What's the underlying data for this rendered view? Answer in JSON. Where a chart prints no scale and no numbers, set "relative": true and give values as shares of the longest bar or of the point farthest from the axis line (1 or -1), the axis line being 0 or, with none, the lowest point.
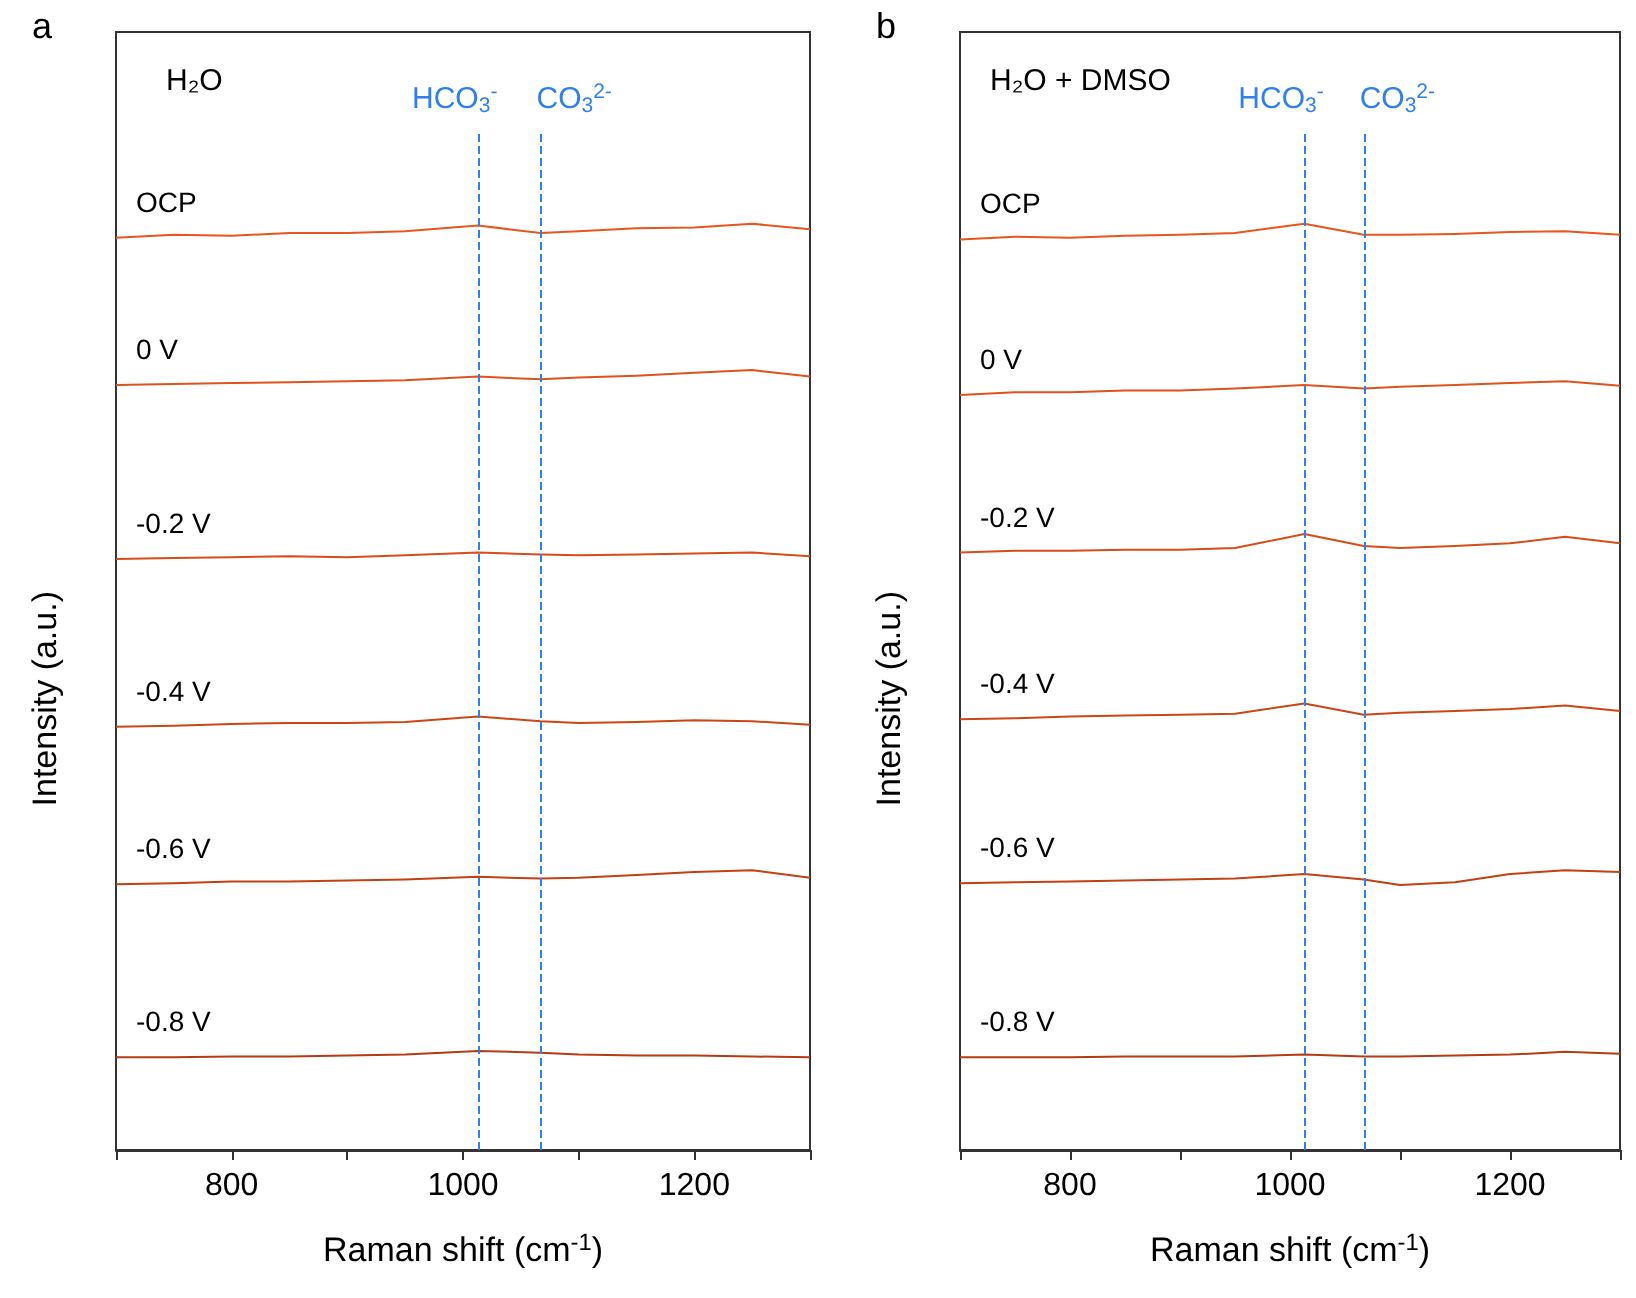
{
  "chart_data": [
    {
      "type": "line",
      "relative": true,
      "xlabel": "Raman shift (cm$^{-1}$)",
      "ylabel": "Intensity (a.u.)",
      "annotations": [
        "a",
        "H₂O"
      ],
      "x": [
        700,
        750,
        800,
        850,
        900,
        950,
        1013,
        1067,
        1100,
        1150,
        1200,
        1250,
        1300
      ],
      "xlim": [
        700,
        1300
      ],
      "xticks": [
        {
          "value": 700,
          "label": null
        },
        800,
        {
          "value": 900,
          "label": null
        },
        1000,
        {
          "value": 1100,
          "label": null
        },
        1200,
        {
          "value": 1300,
          "label": null
        }
      ],
      "grid": false,
      "legend": false,
      "marker": "none",
      "line_style": "solid",
      "ref_lines": [
        {
          "axis": "x",
          "value": 1013,
          "label": "HCO$_{3}$$^{-}$",
          "color": "#2f7fef",
          "line_style": "dashed"
        },
        {
          "axis": "x",
          "value": 1067,
          "label": "CO$_{3}$$^{2-}$",
          "color": "#2f7fef",
          "line_style": "dashed"
        }
      ],
      "series": [
        {
          "name": "OCP",
          "color": "#e8561e",
          "values": [
            0.985,
            0.988,
            0.987,
            0.99,
            0.99,
            0.992,
            0.998,
            0.99,
            0.992,
            0.995,
            0.996,
            1.0,
            0.994
          ]
        },
        {
          "name": "0 V",
          "color": "#e0521b",
          "values": [
            0.826,
            0.827,
            0.828,
            0.829,
            0.83,
            0.831,
            0.835,
            0.832,
            0.834,
            0.836,
            0.839,
            0.842,
            0.835
          ]
        },
        {
          "name": "-0.2 V",
          "color": "#d84c18",
          "values": [
            0.638,
            0.639,
            0.64,
            0.641,
            0.64,
            0.642,
            0.645,
            0.643,
            0.642,
            0.643,
            0.644,
            0.645,
            0.641
          ]
        },
        {
          "name": "-0.4 V",
          "color": "#cc4615",
          "values": [
            0.457,
            0.458,
            0.46,
            0.461,
            0.461,
            0.462,
            0.468,
            0.463,
            0.461,
            0.462,
            0.464,
            0.463,
            0.459
          ]
        },
        {
          "name": "-0.6 V",
          "color": "#c24013",
          "values": [
            0.287,
            0.288,
            0.29,
            0.29,
            0.291,
            0.292,
            0.295,
            0.293,
            0.294,
            0.297,
            0.3,
            0.302,
            0.294
          ]
        },
        {
          "name": "-0.8 V",
          "color": "#b83a12",
          "values": [
            0.1,
            0.1,
            0.101,
            0.101,
            0.102,
            0.103,
            0.107,
            0.105,
            0.103,
            0.102,
            0.102,
            0.101,
            0.1
          ]
        }
      ]
    },
    {
      "type": "line",
      "relative": true,
      "xlabel": "Raman shift (cm$^{-1}$)",
      "ylabel": "Intensity (a.u.)",
      "annotations": [
        "b",
        "H₂O + DMSO"
      ],
      "x": [
        700,
        750,
        800,
        850,
        900,
        950,
        1013,
        1067,
        1100,
        1150,
        1200,
        1250,
        1300
      ],
      "xlim": [
        700,
        1300
      ],
      "xticks": [
        {
          "value": 700,
          "label": null
        },
        800,
        {
          "value": 900,
          "label": null
        },
        1000,
        {
          "value": 1100,
          "label": null
        },
        1200,
        {
          "value": 1300,
          "label": null
        }
      ],
      "grid": false,
      "legend": false,
      "marker": "none",
      "line_style": "solid",
      "ref_lines": [
        {
          "axis": "x",
          "value": 1013,
          "label": "HCO$_{3}$$^{-}$",
          "color": "#2f7fef",
          "line_style": "dashed"
        },
        {
          "axis": "x",
          "value": 1067,
          "label": "CO$_{3}$$^{2-}$",
          "color": "#2f7fef",
          "line_style": "dashed"
        }
      ],
      "series": [
        {
          "name": "OCP",
          "color": "#e8561e",
          "values": [
            0.983,
            0.986,
            0.985,
            0.987,
            0.988,
            0.99,
            1.0,
            0.988,
            0.988,
            0.989,
            0.991,
            0.992,
            0.988
          ]
        },
        {
          "name": "0 V",
          "color": "#e0521b",
          "values": [
            0.815,
            0.818,
            0.818,
            0.82,
            0.82,
            0.822,
            0.826,
            0.822,
            0.824,
            0.826,
            0.828,
            0.83,
            0.825
          ]
        },
        {
          "name": "-0.2 V",
          "color": "#d84c18",
          "values": [
            0.645,
            0.647,
            0.647,
            0.648,
            0.648,
            0.65,
            0.665,
            0.652,
            0.65,
            0.652,
            0.655,
            0.662,
            0.655
          ]
        },
        {
          "name": "-0.4 V",
          "color": "#cc4615",
          "values": [
            0.465,
            0.466,
            0.468,
            0.469,
            0.47,
            0.471,
            0.482,
            0.47,
            0.472,
            0.474,
            0.476,
            0.48,
            0.474
          ]
        },
        {
          "name": "-0.6 V",
          "color": "#c24013",
          "values": [
            0.288,
            0.289,
            0.29,
            0.291,
            0.292,
            0.293,
            0.298,
            0.292,
            0.286,
            0.289,
            0.298,
            0.302,
            0.3
          ]
        },
        {
          "name": "-0.8 V",
          "color": "#b83a12",
          "values": [
            0.1,
            0.1,
            0.1,
            0.101,
            0.101,
            0.101,
            0.103,
            0.101,
            0.101,
            0.102,
            0.103,
            0.106,
            0.104
          ]
        }
      ]
    }
  ]
}
